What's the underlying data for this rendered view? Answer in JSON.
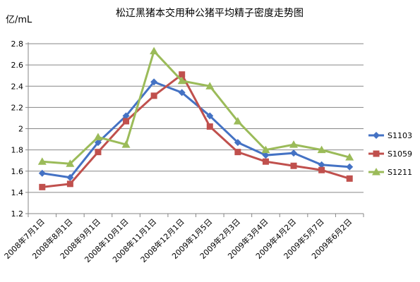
{
  "chart_data": {
    "type": "line",
    "title": "松辽黑猪本交用种公猪平均精子密度走势图",
    "ylabel": "亿/mL",
    "xlabel": "",
    "ylim": [
      1.2,
      2.8
    ],
    "yticks": [
      "1.2",
      "1.4",
      "1.6",
      "1.8",
      "2",
      "2.2",
      "2.4",
      "2.6",
      "2.8"
    ],
    "ytick_values": [
      1.2,
      1.4,
      1.6,
      1.8,
      2.0,
      2.2,
      2.4,
      2.6,
      2.8
    ],
    "grid": "horizontal",
    "legend_position": "right",
    "categories": [
      "2008年7月1日",
      "2008年8月1日",
      "2008年9月1日",
      "2008年10月1日",
      "2008年11月1日",
      "2008年12月1日",
      "2009年1月5日",
      "2009年2月3日",
      "2009年3月4日",
      "2009年4月2日",
      "2009年5月7日",
      "2009年6月2日"
    ],
    "series": [
      {
        "name": "S1103",
        "color": "#4472C4",
        "marker": "diamond",
        "values": [
          1.58,
          1.54,
          1.87,
          2.12,
          2.44,
          2.34,
          2.12,
          1.87,
          1.75,
          1.77,
          1.66,
          1.64
        ]
      },
      {
        "name": "S1059",
        "color": "#C0504D",
        "marker": "square",
        "values": [
          1.45,
          1.48,
          1.78,
          2.07,
          2.31,
          2.51,
          2.02,
          1.78,
          1.69,
          1.65,
          1.61,
          1.53
        ]
      },
      {
        "name": "S1211",
        "color": "#9BBB59",
        "marker": "triangle",
        "values": [
          1.69,
          1.67,
          1.92,
          1.85,
          2.73,
          2.45,
          2.4,
          2.07,
          1.8,
          1.85,
          1.8,
          1.73
        ]
      }
    ]
  }
}
